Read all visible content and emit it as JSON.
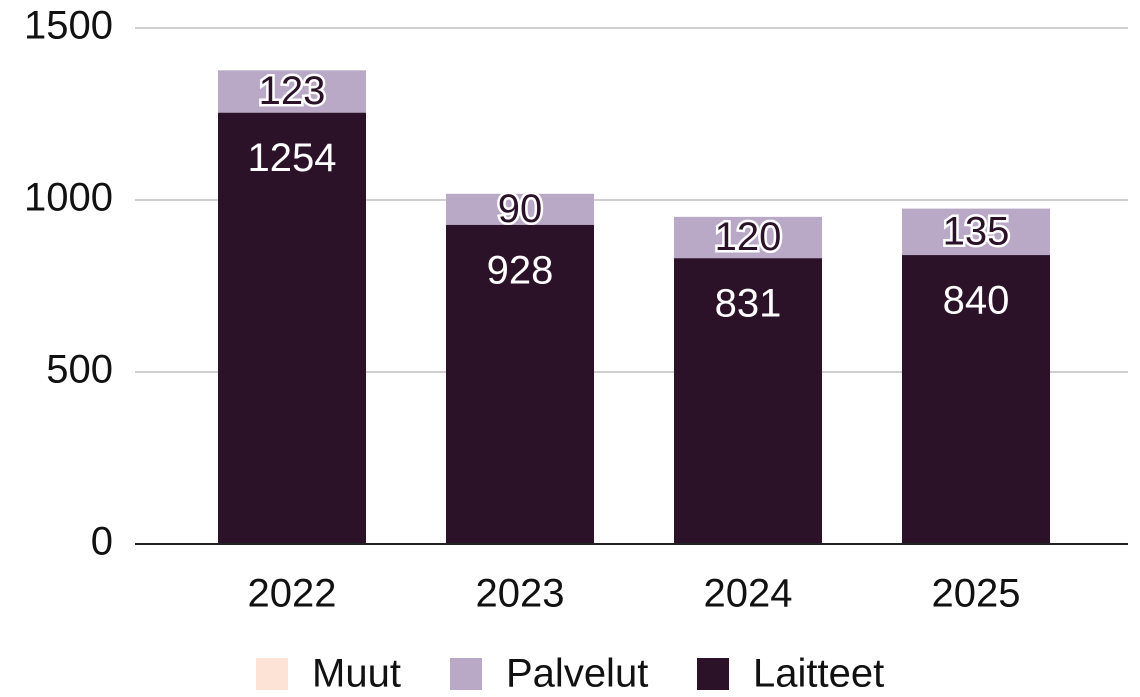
{
  "chart_data": {
    "type": "bar",
    "stacked": true,
    "categories": [
      "2022",
      "2023",
      "2024",
      "2025"
    ],
    "series": [
      {
        "name": "Laitteet",
        "color": "#2b1228",
        "values": [
          1254,
          928,
          831,
          840
        ]
      },
      {
        "name": "Palvelut",
        "color": "#b9a9c6",
        "values": [
          123,
          90,
          120,
          135
        ]
      },
      {
        "name": "Muut",
        "color": "#fde3d6",
        "values": [
          0,
          0,
          0,
          0
        ]
      }
    ],
    "ylim": [
      0,
      1500
    ],
    "yticks": [
      0,
      500,
      1000,
      1500
    ],
    "grid": true,
    "legend": "bottom"
  }
}
